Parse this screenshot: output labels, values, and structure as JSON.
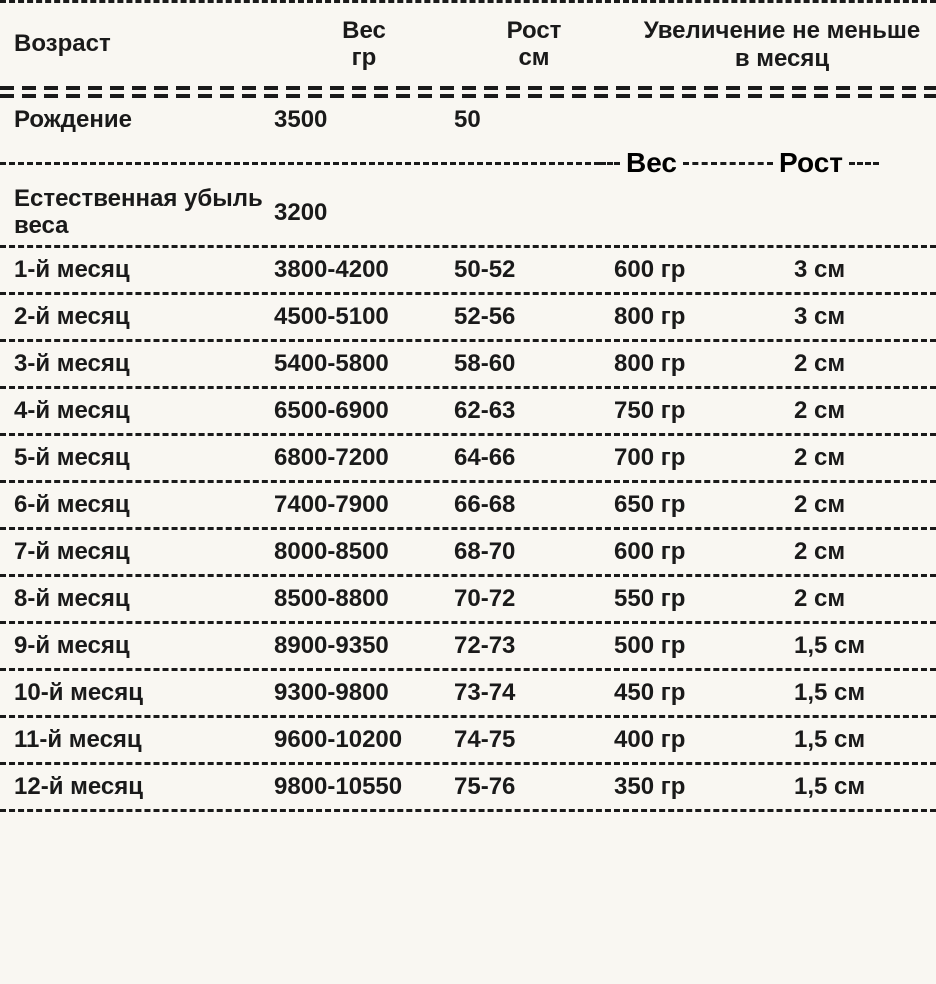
{
  "table": {
    "type": "table",
    "background_color": "#f9f7f2",
    "text_color": "#1a1a1a",
    "border_style": "dashed",
    "border_color": "#1a1a1a",
    "font_weight": 700,
    "header": {
      "age": "Возраст",
      "weight_line1": "Вес",
      "weight_line2": "гр",
      "height_line1": "Рост",
      "height_line2": "см",
      "increase_line1": "Увеличение не меньше",
      "increase_line2": "в месяц",
      "sub_weight": "Вес",
      "sub_height": "Рост"
    },
    "birth_row": {
      "age": "Рождение",
      "weight": "3500",
      "height": "50"
    },
    "loss_row": {
      "age_line1": "Естественная убыль",
      "age_line2": "веса",
      "weight": "3200"
    },
    "rows": [
      {
        "age": "1-й месяц",
        "weight": "3800-4200",
        "height": "50-52",
        "inc_w": "600 гр",
        "inc_h": "3 см"
      },
      {
        "age": "2-й месяц",
        "weight": "4500-5100",
        "height": "52-56",
        "inc_w": "800 гр",
        "inc_h": "3 см"
      },
      {
        "age": "3-й месяц",
        "weight": "5400-5800",
        "height": "58-60",
        "inc_w": "800 гр",
        "inc_h": "2 см"
      },
      {
        "age": "4-й месяц",
        "weight": "6500-6900",
        "height": "62-63",
        "inc_w": "750 гр",
        "inc_h": "2 см"
      },
      {
        "age": "5-й месяц",
        "weight": "6800-7200",
        "height": "64-66",
        "inc_w": "700 гр",
        "inc_h": "2 см"
      },
      {
        "age": "6-й месяц",
        "weight": "7400-7900",
        "height": "66-68",
        "inc_w": "650 гр",
        "inc_h": "2 см"
      },
      {
        "age": "7-й месяц",
        "weight": "8000-8500",
        "height": "68-70",
        "inc_w": "600 гр",
        "inc_h": "2 см"
      },
      {
        "age": "8-й месяц",
        "weight": "8500-8800",
        "height": "70-72",
        "inc_w": "550 гр",
        "inc_h": "2 см"
      },
      {
        "age": "9-й месяц",
        "weight": "8900-9350",
        "height": "72-73",
        "inc_w": "500 гр",
        "inc_h": "1,5 см"
      },
      {
        "age": "10-й месяц",
        "weight": "9300-9800",
        "height": "73-74",
        "inc_w": "450 гр",
        "inc_h": "1,5 см"
      },
      {
        "age": "11-й месяц",
        "weight": "9600-10200",
        "height": "74-75",
        "inc_w": "400 гр",
        "inc_h": "1,5 см"
      },
      {
        "age": "12-й месяц",
        "weight": "9800-10550",
        "height": "75-76",
        "inc_w": "350 гр",
        "inc_h": "1,5 см"
      }
    ]
  }
}
